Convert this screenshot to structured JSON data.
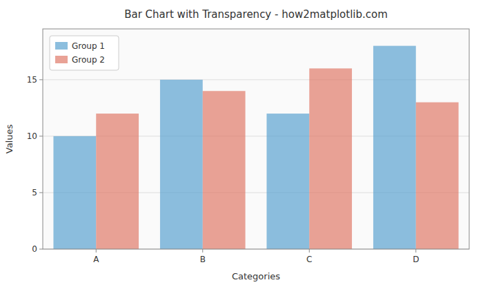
{
  "chart_data": {
    "type": "bar",
    "title": "Bar Chart with Transparency - how2matplotlib.com",
    "xlabel": "Categories",
    "ylabel": "Values",
    "categories": [
      "A",
      "B",
      "C",
      "D"
    ],
    "series": [
      {
        "name": "Group 1",
        "color": "#5BA3D0",
        "values": [
          10,
          15,
          12,
          18
        ]
      },
      {
        "name": "Group 2",
        "color": "#E07B6A",
        "values": [
          12,
          14,
          16,
          13
        ]
      }
    ],
    "ylim": [
      0,
      19.5
    ],
    "yticks": [
      0,
      5,
      10,
      15
    ],
    "grid": true,
    "legend": "upper left"
  }
}
